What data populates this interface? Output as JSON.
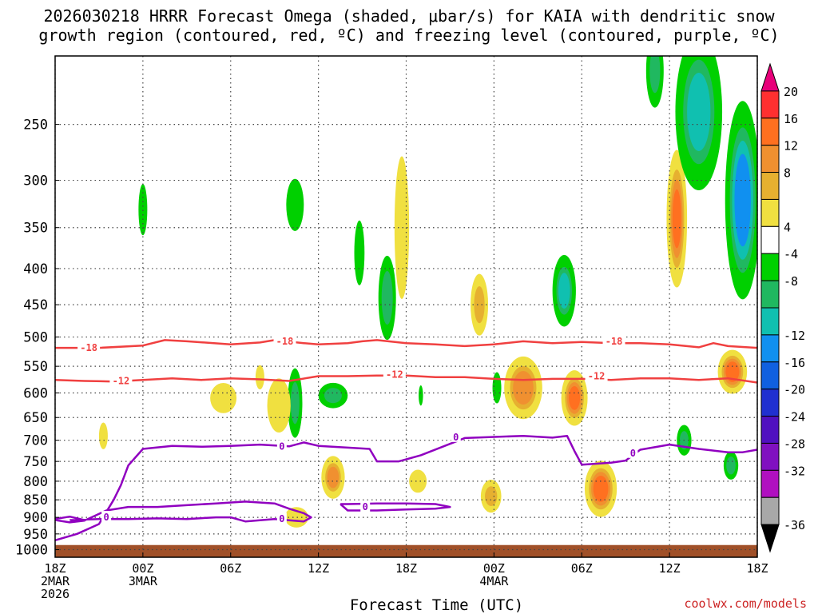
{
  "title_line1": "2026030218 HRRR Forecast Omega (shaded, μbar/s) for KAIA with dendritic snow",
  "title_line2": "growth region (contoured, red, ºC) and freezing level (contoured, purple, ºC)",
  "credit": "coolwx.com/models",
  "chart_data": {
    "type": "heatmap",
    "title": "2026030218 HRRR Forecast Omega (shaded, μbar/s) for KAIA with dendritic snow growth region (contoured, red, ºC) and freezing level (contoured, purple, ºC)",
    "xlabel": "Forecast Time (UTC)",
    "ylabel": "",
    "x_ticks": [
      {
        "hour": 0,
        "labels": [
          "18Z",
          "2MAR",
          "2026"
        ]
      },
      {
        "hour": 6,
        "labels": [
          "00Z",
          "3MAR"
        ]
      },
      {
        "hour": 12,
        "labels": [
          "06Z"
        ]
      },
      {
        "hour": 18,
        "labels": [
          "12Z"
        ]
      },
      {
        "hour": 24,
        "labels": [
          "18Z"
        ]
      },
      {
        "hour": 30,
        "labels": [
          "00Z",
          "4MAR"
        ]
      },
      {
        "hour": 36,
        "labels": [
          "06Z"
        ]
      },
      {
        "hour": 42,
        "labels": [
          "12Z"
        ]
      },
      {
        "hour": 48,
        "labels": [
          "18Z"
        ]
      }
    ],
    "y_ticks": [
      250,
      300,
      350,
      400,
      450,
      500,
      550,
      600,
      650,
      700,
      750,
      800,
      850,
      900,
      950,
      1000
    ],
    "y_scale": "log-pressure",
    "ylim": [
      200,
      1025
    ],
    "xlim": [
      0,
      48
    ],
    "grid": true,
    "colorbar": {
      "labels": [
        "20",
        "16",
        "12",
        "8",
        "4",
        "-4",
        "-8",
        "-12",
        "-16",
        "-20",
        "-24",
        "-28",
        "-32",
        "-36"
      ],
      "colors": [
        "#e8007a",
        "#ff3030",
        "#ff7020",
        "#f09030",
        "#e6b030",
        "#f0e040",
        "#ffffff",
        "#00d000",
        "#20b860",
        "#10c0b0",
        "#1090f0",
        "#1060e0",
        "#2030d0",
        "#5010c0",
        "#8010c0",
        "#b010c0",
        "#a8a8a8",
        "#000000"
      ]
    },
    "omega_features": [
      {
        "t": 3.3,
        "p": 690,
        "r": 0.3,
        "h": 60,
        "v": 6
      },
      {
        "t": 6.0,
        "p": 330,
        "r": 0.3,
        "h": 55,
        "v": -6
      },
      {
        "t": 11.5,
        "p": 610,
        "r": 0.9,
        "h": 60,
        "v": 6
      },
      {
        "t": 14.0,
        "p": 570,
        "r": 0.3,
        "h": 45,
        "v": 5
      },
      {
        "t": 16.4,
        "p": 620,
        "r": 0.5,
        "h": 140,
        "v": -8
      },
      {
        "t": 16.4,
        "p": 325,
        "r": 0.6,
        "h": 55,
        "v": -7
      },
      {
        "t": 16.5,
        "p": 900,
        "r": 0.8,
        "h": 60,
        "v": 6
      },
      {
        "t": 19.0,
        "p": 790,
        "r": 0.8,
        "h": 110,
        "v": 10
      },
      {
        "t": 19.0,
        "p": 605,
        "r": 1.0,
        "h": 50,
        "v": -8
      },
      {
        "t": 20.8,
        "p": 380,
        "r": 0.35,
        "h": 80,
        "v": -6
      },
      {
        "t": 22.7,
        "p": 440,
        "r": 0.6,
        "h": 120,
        "v": -9
      },
      {
        "t": 23.7,
        "p": 350,
        "r": 0.5,
        "h": 160,
        "v": 7
      },
      {
        "t": 24.8,
        "p": 800,
        "r": 0.6,
        "h": 60,
        "v": 7
      },
      {
        "t": 29.0,
        "p": 450,
        "r": 0.6,
        "h": 90,
        "v": 8
      },
      {
        "t": 29.8,
        "p": 840,
        "r": 0.7,
        "h": 90,
        "v": 8
      },
      {
        "t": 30.2,
        "p": 590,
        "r": 0.3,
        "h": 60,
        "v": -7
      },
      {
        "t": 32.0,
        "p": 590,
        "r": 1.3,
        "h": 120,
        "v": 11
      },
      {
        "t": 34.8,
        "p": 430,
        "r": 0.8,
        "h": 100,
        "v": -10
      },
      {
        "t": 35.5,
        "p": 610,
        "r": 0.9,
        "h": 110,
        "v": 12
      },
      {
        "t": 37.3,
        "p": 820,
        "r": 1.1,
        "h": 150,
        "v": 13
      },
      {
        "t": 41.0,
        "p": 210,
        "r": 0.6,
        "h": 50,
        "v": -8
      },
      {
        "t": 42.5,
        "p": 340,
        "r": 0.7,
        "h": 150,
        "v": 12
      },
      {
        "t": 43.0,
        "p": 700,
        "r": 0.5,
        "h": 70,
        "v": -8
      },
      {
        "t": 44.0,
        "p": 240,
        "r": 1.6,
        "h": 120,
        "v": -10
      },
      {
        "t": 47.0,
        "p": 320,
        "r": 1.2,
        "h": 200,
        "v": -13
      },
      {
        "t": 46.3,
        "p": 560,
        "r": 1.0,
        "h": 80,
        "v": 13
      },
      {
        "t": 46.2,
        "p": 760,
        "r": 0.5,
        "h": 70,
        "v": -9
      },
      {
        "t": 15.3,
        "p": 625,
        "r": 0.8,
        "h": 110,
        "v": 6
      },
      {
        "t": 25.0,
        "p": 605,
        "r": 0.15,
        "h": 40,
        "v": -6
      }
    ],
    "series": [
      {
        "name": "-18",
        "color": "#f04040",
        "hours": [
          0,
          3,
          6,
          7.5,
          9,
          12,
          14,
          15,
          17,
          18,
          20,
          21,
          22,
          24,
          26,
          28,
          30,
          32,
          34,
          36,
          38,
          40,
          42,
          44,
          45,
          46,
          48
        ],
        "pressure": [
          518,
          518,
          514,
          505,
          507,
          512,
          509,
          505,
          510,
          512,
          510,
          507,
          505,
          510,
          512,
          515,
          512,
          507,
          510,
          508,
          510,
          510,
          512,
          517,
          510,
          515,
          518
        ]
      },
      {
        "name": "-12",
        "color": "#f04040",
        "hours": [
          0,
          2,
          4,
          6,
          8,
          10,
          12,
          14,
          16,
          18,
          20,
          22,
          24,
          26,
          28,
          30,
          32,
          34,
          36,
          38,
          40,
          42,
          44,
          46,
          48
        ],
        "pressure": [
          575,
          577,
          578,
          575,
          572,
          575,
          572,
          574,
          577,
          568,
          568,
          567,
          567,
          570,
          570,
          573,
          575,
          573,
          573,
          575,
          572,
          572,
          575,
          572,
          580
        ]
      },
      {
        "name": "0",
        "color": "#9000c0",
        "hours": [
          0,
          1.5,
          3,
          4,
          4.5,
          5,
          6,
          8,
          10,
          12,
          14,
          16,
          17,
          18,
          20,
          21.5,
          22,
          23.5,
          25,
          28,
          32,
          34,
          35,
          35.5,
          36,
          38,
          39,
          40,
          42,
          44,
          46,
          47,
          48
        ],
        "pressure": [
          970,
          950,
          920,
          850,
          810,
          760,
          720,
          713,
          715,
          713,
          710,
          714,
          705,
          713,
          717,
          720,
          750,
          750,
          735,
          695,
          690,
          694,
          690,
          725,
          758,
          753,
          748,
          722,
          710,
          720,
          728,
          728,
          722
        ]
      },
      {
        "name": "0",
        "color": "#9000c0",
        "hours": [
          0,
          1,
          2,
          1,
          0,
          1,
          2,
          3.5,
          5,
          7,
          9,
          11,
          13,
          15,
          16,
          17,
          17.5,
          17,
          15,
          13,
          12,
          11,
          9,
          7,
          5,
          3,
          1
        ],
        "pressure": [
          905,
          898,
          908,
          915,
          908,
          915,
          910,
          880,
          870,
          870,
          865,
          860,
          855,
          860,
          875,
          888,
          900,
          912,
          905,
          912,
          900,
          900,
          905,
          903,
          905,
          905,
          908
        ]
      },
      {
        "name": "0",
        "color": "#9000c0",
        "hours": [
          19.5,
          20,
          22,
          24,
          26,
          27,
          26,
          24,
          22,
          20,
          19.5
        ],
        "pressure": [
          862,
          880,
          880,
          877,
          875,
          870,
          862,
          860,
          860,
          862,
          862
        ]
      }
    ],
    "contour_labels": [
      {
        "text": "-18",
        "hour": 2.3,
        "pressure": 518
      },
      {
        "text": "-18",
        "hour": 15.7,
        "pressure": 507
      },
      {
        "text": "-18",
        "hour": 38.2,
        "pressure": 507
      },
      {
        "text": "-12",
        "hour": 4.5,
        "pressure": 577
      },
      {
        "text": "-12",
        "hour": 23.2,
        "pressure": 565
      },
      {
        "text": "-12",
        "hour": 37.0,
        "pressure": 568
      },
      {
        "text": "0",
        "hour": 15.5,
        "pressure": 714
      },
      {
        "text": "0",
        "hour": 27.4,
        "pressure": 693
      },
      {
        "text": "0",
        "hour": 39.5,
        "pressure": 730
      },
      {
        "text": "0",
        "hour": 3.5,
        "pressure": 900
      },
      {
        "text": "0",
        "hour": 15.5,
        "pressure": 905
      },
      {
        "text": "0",
        "hour": 21.2,
        "pressure": 870
      }
    ],
    "ground": {
      "top_pressure": 985,
      "color": "#a05028"
    }
  }
}
